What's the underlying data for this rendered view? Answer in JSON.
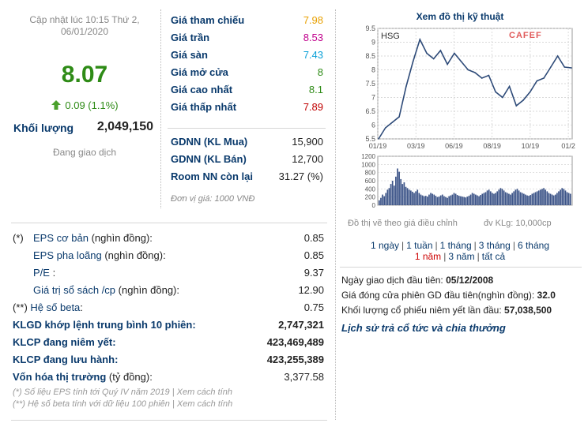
{
  "updated": {
    "line1": "Cập nhật lúc 10:15 Thứ 2,",
    "line2": "06/01/2020"
  },
  "price": {
    "current": "8.07",
    "change": "0.09 (1.1%)",
    "volume_label": "Khối lượng",
    "volume": "2,049,150",
    "status": "Đang giao dịch",
    "colors": {
      "up": "#2e8b16",
      "ceiling": "#c0008c",
      "floor": "#0aa0d8",
      "ref": "#e8a000",
      "down": "#c00000"
    }
  },
  "quote": [
    {
      "label": "Giá tham chiếu",
      "value": "7.98"
    },
    {
      "label": "Giá trần",
      "value": "8.53"
    },
    {
      "label": "Giá sàn",
      "value": "7.43"
    },
    {
      "label": "Giá mở cửa",
      "value": "8"
    },
    {
      "label": "Giá cao nhất",
      "value": "8.1"
    },
    {
      "label": "Giá thấp nhất",
      "value": "7.89"
    }
  ],
  "foreign": [
    {
      "label": "GDNN (KL Mua)",
      "value": "15,900"
    },
    {
      "label": "GDNN (KL Bán)",
      "value": "12,700"
    },
    {
      "label": "Room NN còn lại",
      "value": "31.27 (%)"
    }
  ],
  "unit_note": "Đơn vị giá: 1000 VNĐ",
  "fundamentals": [
    {
      "prefix": "(*)",
      "label": "EPS cơ bản",
      "suffix": " (nghìn đồng):",
      "value": "0.85"
    },
    {
      "prefix": "",
      "label": "EPS pha loãng",
      "suffix": " (nghìn đồng):",
      "value": "0.85"
    },
    {
      "prefix": "",
      "label": "P/E",
      "suffix": " :",
      "value": "9.37"
    },
    {
      "prefix": "",
      "label": "Giá trị sổ sách /cp",
      "suffix": " (nghìn đồng):",
      "value": "12.90"
    },
    {
      "prefix": "(**)",
      "label": "Hệ số beta",
      "suffix": ":",
      "value": "0.75"
    },
    {
      "prefix": "",
      "label": "KLGD khớp lệnh trung bình 10 phiên",
      "suffix": ":",
      "value": "2,747,321"
    },
    {
      "prefix": "",
      "label": "KLCP đang niêm yết",
      "suffix": ":",
      "value": "423,469,489"
    },
    {
      "prefix": "",
      "label": "KLCP đang lưu hành",
      "suffix": ":",
      "value": "423,255,389"
    },
    {
      "prefix": "",
      "label": "Vốn hóa thị trường",
      "suffix": " (tỷ đồng):",
      "value": "3,377.58"
    }
  ],
  "footnotes": {
    "eps": "(*) Số liệu EPS tính tới Quý IV năm 2019 |",
    "eps_link": "Xem cách tính",
    "beta": "(**) Hệ số beta tính với dữ liệu 100 phiên |",
    "beta_link": "Xem cách tính"
  },
  "chart_panel": {
    "title": "Xem đồ thị kỹ thuật",
    "ticker": "HSG",
    "logo": "CAFEF",
    "note_left": "Đồ thị vẽ theo giá điều chỉnh",
    "note_right": "đv KLg: 10,000cp",
    "periods_row1": [
      "1 ngày",
      "1 tuần",
      "1 tháng",
      "3 tháng",
      "6 tháng"
    ],
    "periods_row2": [
      "1 năm",
      "3 năm",
      "tất cả"
    ],
    "active_period": "1 năm"
  },
  "listing": [
    {
      "label": "Ngày giao dịch đầu tiên:",
      "value": "05/12/2008"
    },
    {
      "label": "Giá đóng cửa phiên GD đầu tiên(nghìn đồng):",
      "value": "32.0"
    },
    {
      "label": "Khối lượng cổ phiếu niêm yết lần đầu:",
      "value": "57,038,500"
    }
  ],
  "dividend_link": "Lịch sử trả cổ tức và chia thưởng",
  "chart_data": [
    {
      "type": "line",
      "series": [
        {
          "name": "HSG",
          "x": [
            "01/19",
            "01/19",
            "01/19",
            "01/19",
            "02/19",
            "02/19",
            "03/19",
            "03/19",
            "03/19",
            "04/19",
            "04/19",
            "05/19",
            "05/19",
            "06/19",
            "06/19",
            "07/19",
            "07/19",
            "08/19",
            "08/19",
            "08/19",
            "09/19",
            "09/19",
            "10/19",
            "10/19",
            "11/19",
            "11/19",
            "12/19",
            "12/19",
            "01/20"
          ],
          "values": [
            5.5,
            5.9,
            6.1,
            6.3,
            7.4,
            8.3,
            9.1,
            8.6,
            8.4,
            8.7,
            8.2,
            8.6,
            8.3,
            8.0,
            7.9,
            7.7,
            7.8,
            7.2,
            7.0,
            7.4,
            6.7,
            6.9,
            7.2,
            7.6,
            7.7,
            8.1,
            8.5,
            8.1,
            8.07
          ]
        }
      ],
      "x_ticks": [
        "01/19",
        "03/19",
        "06/19",
        "08/19",
        "10/19",
        "01/2"
      ],
      "y_ticks": [
        "5.5",
        "6",
        "6.5",
        "7",
        "7.5",
        "8",
        "8.5",
        "9",
        "9.5"
      ],
      "ylim": [
        5.5,
        9.5
      ]
    },
    {
      "type": "bar",
      "series": [
        {
          "name": "volume",
          "values": [
            120,
            180,
            260,
            220,
            300,
            380,
            420,
            520,
            600,
            480,
            700,
            900,
            820,
            640,
            520,
            560,
            450,
            420,
            380,
            360,
            330,
            300,
            340,
            380,
            300,
            260,
            240,
            220,
            230,
            210,
            260,
            300,
            280,
            260,
            230,
            200,
            210,
            240,
            260,
            220,
            200,
            180,
            220,
            240,
            260,
            300,
            280,
            250,
            230,
            220,
            210,
            200,
            190,
            210,
            230,
            260,
            300,
            280,
            260,
            240,
            220,
            250,
            280,
            300,
            320,
            360,
            380,
            340,
            300,
            280,
            300,
            340,
            380,
            420,
            400,
            360,
            320,
            300,
            280,
            260,
            300,
            340,
            380,
            400,
            360,
            320,
            300,
            280,
            260,
            240,
            230,
            250,
            280,
            300,
            320,
            340,
            360,
            380,
            400,
            420,
            380,
            340,
            300,
            280,
            260,
            240,
            260,
            300,
            340,
            380,
            420,
            400,
            360,
            320,
            300,
            280
          ]
        }
      ],
      "y_ticks": [
        "0",
        "200",
        "400",
        "600",
        "800",
        "1000",
        "1200"
      ],
      "ylim": [
        0,
        1200
      ]
    }
  ]
}
